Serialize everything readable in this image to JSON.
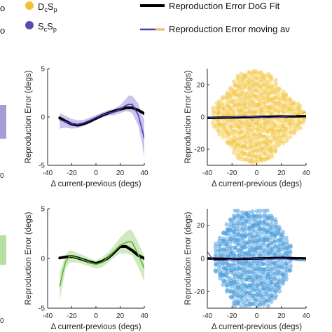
{
  "legend": {
    "dot_yellow": {
      "main1": "D",
      "sub1": "c",
      "main2": "S",
      "sub2": "p",
      "color": "#F2C230"
    },
    "dot_purple": {
      "main1": "S",
      "sub1": "c",
      "main2": "S",
      "sub2": "p",
      "color": "#5A4AB0"
    },
    "left_fragment_1": "o",
    "left_fragment_2": "o",
    "fit_label": "Reproduction Error DoG Fit",
    "avg_label": "Reproduction Error moving av"
  },
  "colors": {
    "fit": "#000000",
    "yellow": "#F2C230",
    "purple": "#4B3CB8",
    "lavender": "#B9AEE8",
    "green": "#5CB03A",
    "lightgreen": "#BFE3A8",
    "blue": "#2F8ED8"
  },
  "left_edge_ticks": [
    "0",
    "0"
  ],
  "chart_data": [
    {
      "id": "top-middle",
      "type": "line",
      "xlabel": "Δ current-previous (degs)",
      "ylabel": "Reproduction Error (degs)",
      "xlim": [
        -40,
        40
      ],
      "ylim": [
        -5,
        5
      ],
      "xticks": [
        "-40",
        "-20",
        "0",
        "20",
        "40"
      ],
      "yticks": [
        "-5",
        "0",
        "5"
      ],
      "series": [
        {
          "role": "fit",
          "x": [
            -30,
            -25,
            -20,
            -15,
            -10,
            -5,
            0,
            5,
            10,
            15,
            20,
            25,
            30,
            35,
            40
          ],
          "y": [
            -0.1,
            -0.45,
            -0.75,
            -0.85,
            -0.7,
            -0.45,
            -0.15,
            0.15,
            0.4,
            0.6,
            0.8,
            0.95,
            0.95,
            0.7,
            0.35
          ]
        },
        {
          "role": "moving-average",
          "x": [
            -30,
            -25,
            -20,
            -15,
            -10,
            -5,
            0,
            5,
            10,
            15,
            20,
            25,
            27,
            30,
            35,
            38,
            40
          ],
          "y": [
            -0.3,
            -0.5,
            -0.7,
            -0.75,
            -0.6,
            -0.35,
            -0.05,
            0.2,
            0.4,
            0.5,
            0.8,
            1.2,
            1.3,
            1.3,
            0.2,
            -1.2,
            -2.2
          ]
        },
        {
          "role": "error-upper",
          "x": [
            -30,
            -25,
            -20,
            -15,
            -10,
            -5,
            0,
            5,
            10,
            15,
            20,
            25,
            27,
            30,
            35,
            38,
            40
          ],
          "y": [
            0.4,
            0.1,
            -0.2,
            -0.35,
            -0.3,
            -0.05,
            0.2,
            0.45,
            0.7,
            0.85,
            1.2,
            1.9,
            2.2,
            2.2,
            1.4,
            0.2,
            -0.3
          ]
        },
        {
          "role": "error-lower",
          "x": [
            -30,
            -25,
            -20,
            -15,
            -10,
            -5,
            0,
            5,
            10,
            15,
            20,
            25,
            27,
            30,
            35,
            38,
            40
          ],
          "y": [
            -1.2,
            -1.1,
            -1.2,
            -1.15,
            -0.95,
            -0.65,
            -0.3,
            -0.05,
            0.15,
            0.2,
            0.4,
            0.6,
            0.55,
            0.4,
            -0.9,
            -2.6,
            -4.2
          ]
        }
      ]
    },
    {
      "id": "top-right",
      "type": "scatter",
      "xlabel": "Δ current-previous (degs)",
      "ylabel": "Reproduction Error (degs)",
      "xlim": [
        -40,
        40
      ],
      "ylim": [
        -30,
        30
      ],
      "xticks": [
        "-40",
        "-20",
        "0",
        "20",
        "40"
      ],
      "yticks": [
        "20",
        "0",
        "-20"
      ],
      "series": [
        {
          "role": "points",
          "x_columns": [
            -35,
            -32,
            -30,
            -27,
            -24,
            -21,
            -18,
            -15,
            -12,
            -9,
            -6,
            -3,
            0,
            3,
            6,
            9,
            12,
            15,
            18,
            21,
            24,
            27,
            30,
            33,
            35,
            38
          ],
          "half_range": [
            5,
            8,
            10,
            12,
            16,
            18,
            22,
            25,
            26,
            27,
            28,
            28,
            28,
            28,
            27,
            26,
            25,
            22,
            18,
            16,
            14,
            12,
            10,
            8,
            6,
            4
          ]
        },
        {
          "role": "fit",
          "x": [
            -40,
            -20,
            0,
            20,
            40
          ],
          "y": [
            -0.5,
            -0.3,
            0,
            0.3,
            0.5
          ]
        },
        {
          "role": "moving-average",
          "x": [
            -40,
            -30,
            -20,
            -10,
            0,
            10,
            20,
            30,
            35,
            40
          ],
          "y": [
            0,
            -0.5,
            0,
            0.5,
            0,
            -0.5,
            0,
            1,
            2,
            3
          ]
        }
      ]
    },
    {
      "id": "bottom-middle",
      "type": "line",
      "xlabel": "Δ current-previous (degs)",
      "ylabel": "Reproduction Error (degs)",
      "xlim": [
        -40,
        40
      ],
      "ylim": [
        -5,
        5
      ],
      "xticks": [
        "-40",
        "-20",
        "0",
        "20",
        "40"
      ],
      "yticks": [
        "5",
        "0",
        "-5"
      ],
      "series": [
        {
          "role": "fit",
          "x": [
            -30,
            -25,
            -20,
            -15,
            -10,
            -5,
            0,
            5,
            10,
            15,
            20,
            25,
            30,
            35,
            40
          ],
          "y": [
            0.05,
            0.15,
            0.2,
            0.05,
            -0.15,
            -0.35,
            -0.5,
            -0.3,
            0.05,
            0.6,
            1.2,
            1.2,
            0.8,
            0.3,
            0.0
          ]
        },
        {
          "role": "moving-average",
          "x": [
            -30,
            -27,
            -25,
            -22,
            -20,
            -15,
            -10,
            -5,
            0,
            5,
            10,
            15,
            20,
            25,
            28,
            30,
            35,
            40
          ],
          "y": [
            -2.8,
            -1.2,
            -0.3,
            0.2,
            0.2,
            0.05,
            -0.15,
            -0.4,
            -0.6,
            -0.4,
            0.1,
            0.7,
            1.3,
            1.6,
            1.7,
            1.6,
            0.4,
            -1.0
          ]
        },
        {
          "role": "error-upper",
          "x": [
            -30,
            -27,
            -25,
            -22,
            -20,
            -15,
            -10,
            -5,
            0,
            5,
            10,
            15,
            20,
            25,
            28,
            30,
            35,
            40
          ],
          "y": [
            -1.4,
            -0.3,
            0.4,
            0.8,
            0.8,
            0.5,
            0.3,
            0.0,
            -0.2,
            0.1,
            0.6,
            1.3,
            2.1,
            2.7,
            2.9,
            2.8,
            1.6,
            0.2
          ]
        },
        {
          "role": "error-lower",
          "x": [
            -30,
            -27,
            -25,
            -22,
            -20,
            -15,
            -10,
            -5,
            0,
            5,
            10,
            15,
            20,
            25,
            28,
            30,
            35,
            40
          ],
          "y": [
            -4.2,
            -2.2,
            -1.0,
            -0.4,
            -0.4,
            -0.4,
            -0.6,
            -0.8,
            -1.0,
            -0.9,
            -0.4,
            0.1,
            0.5,
            0.5,
            0.4,
            0.3,
            -0.9,
            -2.3
          ]
        }
      ]
    },
    {
      "id": "bottom-right",
      "type": "scatter",
      "xlabel": "Δ current-previous (degs)",
      "ylabel": "Reproduction Error (degs)",
      "xlim": [
        -40,
        40
      ],
      "ylim": [
        -30,
        30
      ],
      "xticks": [
        "-40",
        "-20",
        "0",
        "20",
        "40"
      ],
      "yticks": [
        "20",
        "0",
        "-20"
      ],
      "series": [
        {
          "role": "points",
          "x_columns": [
            -33,
            -30,
            -27,
            -24,
            -21,
            -18,
            -15,
            -12,
            -9,
            -6,
            -3,
            0,
            3,
            6,
            9,
            12,
            15,
            18,
            21,
            24,
            27
          ],
          "half_range": [
            8,
            12,
            16,
            20,
            24,
            28,
            28,
            28,
            28,
            28,
            28,
            28,
            28,
            28,
            28,
            26,
            24,
            20,
            16,
            12,
            8
          ]
        },
        {
          "role": "fit",
          "x": [
            -40,
            -20,
            0,
            20,
            40
          ],
          "y": [
            0,
            -0.3,
            0,
            0.3,
            0
          ]
        },
        {
          "role": "moving-average",
          "x": [
            -40,
            -37,
            -35,
            -30,
            -20,
            -10,
            0,
            10,
            20,
            30,
            35,
            40
          ],
          "y": [
            4,
            1,
            -1,
            -1.5,
            -0.5,
            0.5,
            0,
            -0.5,
            0,
            -0.8,
            -1.2,
            -1.5
          ]
        }
      ]
    }
  ]
}
